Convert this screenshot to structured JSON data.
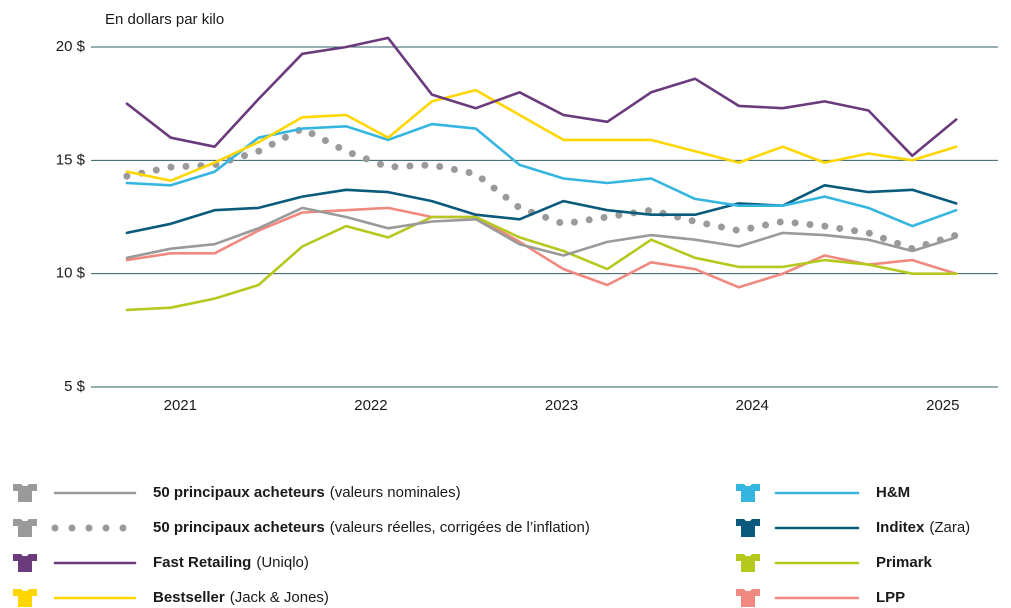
{
  "chart_data": {
    "type": "line",
    "y_label": "En dollars par kilo",
    "x": [
      2020.72,
      2020.95,
      2021.18,
      2021.41,
      2021.64,
      2021.87,
      2022.09,
      2022.32,
      2022.55,
      2022.78,
      2023.01,
      2023.24,
      2023.47,
      2023.7,
      2023.93,
      2024.16,
      2024.38,
      2024.61,
      2024.84,
      2025.07
    ],
    "xlim": [
      2020.5,
      2025.3
    ],
    "xticks": [
      2021,
      2022,
      2023,
      2024,
      2025
    ],
    "ylim": [
      5,
      20
    ],
    "yticks": [
      {
        "value": 5,
        "label": "5 $"
      },
      {
        "value": 10,
        "label": "10 $"
      },
      {
        "value": 15,
        "label": "15 $"
      },
      {
        "value": 20,
        "label": "20 $"
      }
    ],
    "grid": true,
    "series": [
      {
        "name": "50 principaux acheteurs",
        "note": "(valeurs nominales)",
        "color": "#9a9a9a",
        "style": "solid",
        "values": [
          10.7,
          11.1,
          11.3,
          12.0,
          12.9,
          12.5,
          12.0,
          12.3,
          12.4,
          11.3,
          10.8,
          11.4,
          11.7,
          11.5,
          11.2,
          11.8,
          11.7,
          11.5,
          11.0,
          11.6
        ]
      },
      {
        "name": "50 principaux acheteurs",
        "note": "(valeurs réelles, corrigées de l’inflation)",
        "color": "#9a9a9a",
        "style": "dotted",
        "values": [
          14.3,
          14.7,
          14.8,
          15.4,
          16.4,
          15.4,
          14.7,
          14.8,
          14.4,
          12.9,
          12.2,
          12.5,
          12.8,
          12.3,
          11.9,
          12.3,
          12.1,
          11.8,
          11.1,
          11.7
        ]
      },
      {
        "name": "Fast Retailing",
        "note": "(Uniqlo)",
        "color": "#6b3a7d",
        "style": "solid",
        "values": [
          17.5,
          16.0,
          15.6,
          17.7,
          19.7,
          20.0,
          20.4,
          17.9,
          17.3,
          18.0,
          17.0,
          16.7,
          18.0,
          18.6,
          17.4,
          17.3,
          17.6,
          17.2,
          15.2,
          16.8
        ]
      },
      {
        "name": "Bestseller",
        "note": "(Jack & Jones)",
        "color": "#ffd600",
        "style": "solid",
        "values": [
          14.5,
          14.1,
          14.9,
          15.8,
          16.9,
          17.0,
          16.0,
          17.6,
          18.1,
          17.0,
          15.9,
          15.9,
          15.9,
          15.4,
          14.9,
          15.6,
          14.9,
          15.3,
          15.0,
          15.6
        ]
      },
      {
        "name": "H&M",
        "color": "#35b6e0",
        "style": "solid",
        "values": [
          14.0,
          13.9,
          14.5,
          16.0,
          16.4,
          16.5,
          15.9,
          16.6,
          16.4,
          14.8,
          14.2,
          14.0,
          14.2,
          13.3,
          13.0,
          13.0,
          13.4,
          12.9,
          12.1,
          12.8
        ]
      },
      {
        "name": "Inditex",
        "note": "(Zara)",
        "color": "#0a5a7c",
        "style": "solid",
        "values": [
          11.8,
          12.2,
          12.8,
          12.9,
          13.4,
          13.7,
          13.6,
          13.2,
          12.6,
          12.4,
          13.2,
          12.8,
          12.6,
          12.6,
          13.1,
          13.0,
          13.9,
          13.6,
          13.7,
          13.1
        ]
      },
      {
        "name": "Primark",
        "color": "#b5c81e",
        "style": "solid",
        "values": [
          8.4,
          8.5,
          8.9,
          9.5,
          11.2,
          12.1,
          11.6,
          12.5,
          12.5,
          11.6,
          11.0,
          10.2,
          11.5,
          10.7,
          10.3,
          10.3,
          10.6,
          10.4,
          10.0,
          10.0
        ]
      },
      {
        "name": "LPP",
        "color": "#f08a80",
        "style": "solid",
        "values": [
          10.6,
          10.9,
          10.9,
          11.9,
          12.7,
          12.8,
          12.9,
          12.5,
          12.5,
          11.4,
          10.2,
          9.5,
          10.5,
          10.2,
          9.4,
          10.0,
          10.8,
          10.4,
          10.6,
          10.0
        ]
      }
    ]
  }
}
